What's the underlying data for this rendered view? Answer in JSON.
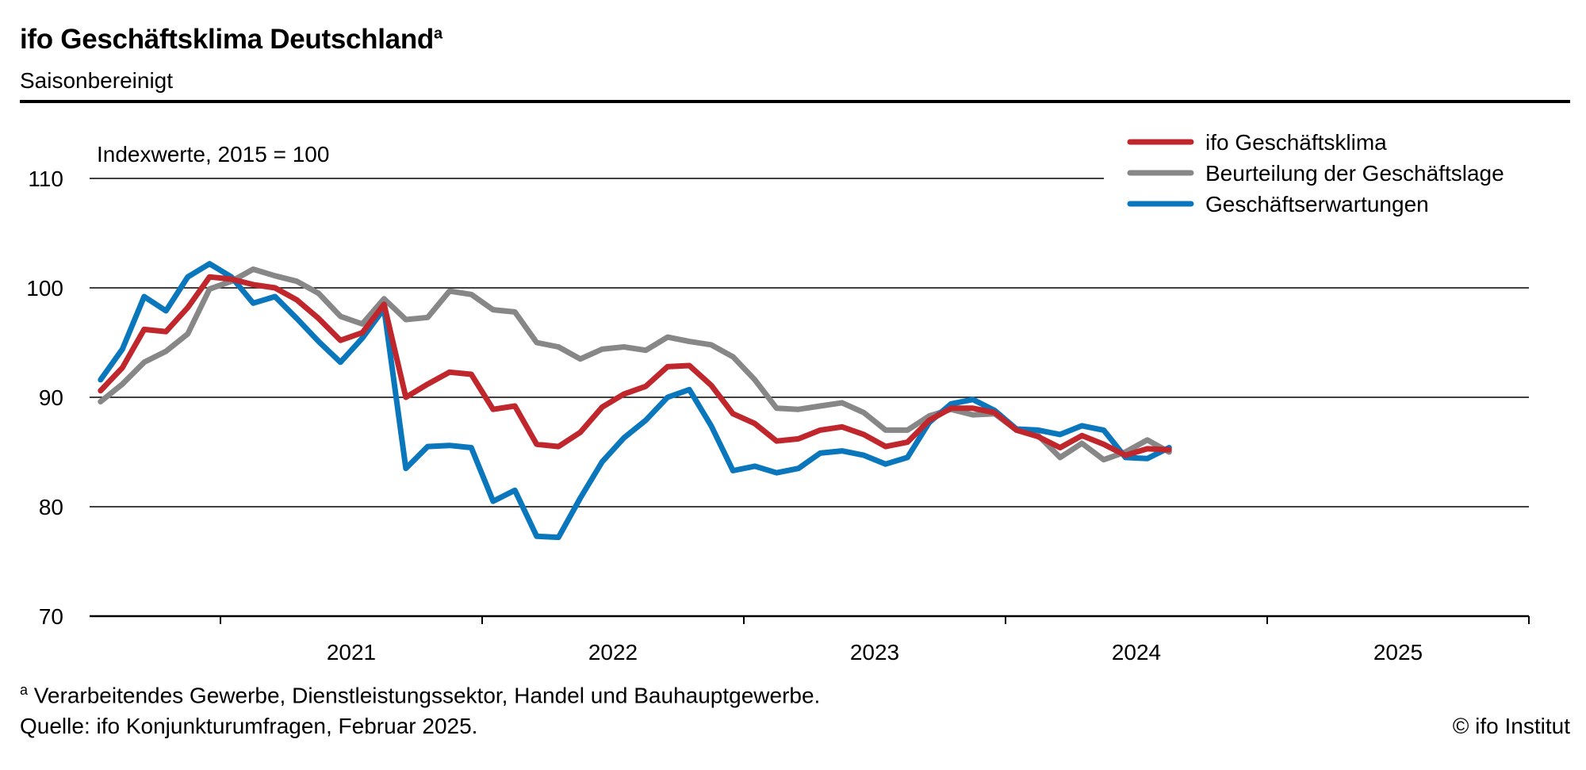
{
  "header": {
    "title": "ifo Geschäftsklima Deutschland",
    "title_sup": "a",
    "subtitle": "Saisonbereinigt"
  },
  "footer": {
    "note_sup": "a",
    "note": "Verarbeitendes Gewerbe, Dienstleistungssektor, Handel und Bauhauptgewerbe.",
    "source": "Quelle: ifo Konjunkturumfragen, Februar 2025.",
    "copyright": "© ifo Institut"
  },
  "chart_data": {
    "type": "line",
    "unit_label": "Indexwerte, 2015 = 100",
    "ylim": [
      70,
      110
    ],
    "yticks": [
      70,
      80,
      90,
      100,
      110
    ],
    "xlim": [
      "2020-07",
      "2025-12"
    ],
    "x_tick_labels": [
      "2021",
      "2022",
      "2023",
      "2024",
      "2025"
    ],
    "x_start": "2020-07",
    "grid": true,
    "legend_position": "top-right",
    "series": [
      {
        "name": "ifo Geschäftsklima",
        "color": "#c0272d",
        "values": [
          90.6,
          92.7,
          96.2,
          96.0,
          98.2,
          101.0,
          100.8,
          100.3,
          100.0,
          98.9,
          97.2,
          95.2,
          95.9,
          98.5,
          90.0,
          91.2,
          92.3,
          92.1,
          88.9,
          89.2,
          85.7,
          85.5,
          86.8,
          89.1,
          90.3,
          91.0,
          92.8,
          92.9,
          91.1,
          88.5,
          87.6,
          86.0,
          86.2,
          87.0,
          87.3,
          86.6,
          85.5,
          85.9,
          87.9,
          89.0,
          89.0,
          88.6,
          87.0,
          86.4,
          85.4,
          86.5,
          85.7,
          84.7,
          85.3,
          85.2
        ]
      },
      {
        "name": "Beurteilung der Geschäftslage",
        "color": "#878787",
        "values": [
          89.6,
          91.2,
          93.2,
          94.2,
          95.8,
          99.9,
          100.6,
          101.7,
          101.1,
          100.6,
          99.5,
          97.4,
          96.7,
          99.0,
          97.1,
          97.3,
          99.7,
          99.4,
          98.0,
          97.8,
          95.0,
          94.6,
          93.5,
          94.4,
          94.6,
          94.3,
          95.5,
          95.1,
          94.8,
          93.7,
          91.6,
          89.0,
          88.9,
          89.2,
          89.5,
          88.6,
          87.0,
          87.0,
          88.3,
          88.9,
          88.4,
          88.5,
          87.0,
          86.5,
          84.5,
          85.8,
          84.3,
          85.0,
          86.1,
          85.0
        ]
      },
      {
        "name": "Geschäftserwartungen",
        "color": "#0a77bd",
        "values": [
          91.6,
          94.4,
          99.2,
          97.9,
          101.0,
          102.2,
          101.0,
          98.6,
          99.2,
          97.2,
          95.1,
          93.2,
          95.4,
          98.1,
          83.5,
          85.5,
          85.6,
          85.4,
          80.5,
          81.5,
          77.3,
          77.2,
          80.8,
          84.1,
          86.3,
          87.9,
          90.0,
          90.7,
          87.4,
          83.3,
          83.7,
          83.1,
          83.5,
          84.9,
          85.1,
          84.7,
          83.9,
          84.5,
          87.7,
          89.4,
          89.8,
          88.8,
          87.1,
          87.0,
          86.6,
          87.4,
          87.0,
          84.5,
          84.4,
          85.4
        ]
      }
    ]
  }
}
